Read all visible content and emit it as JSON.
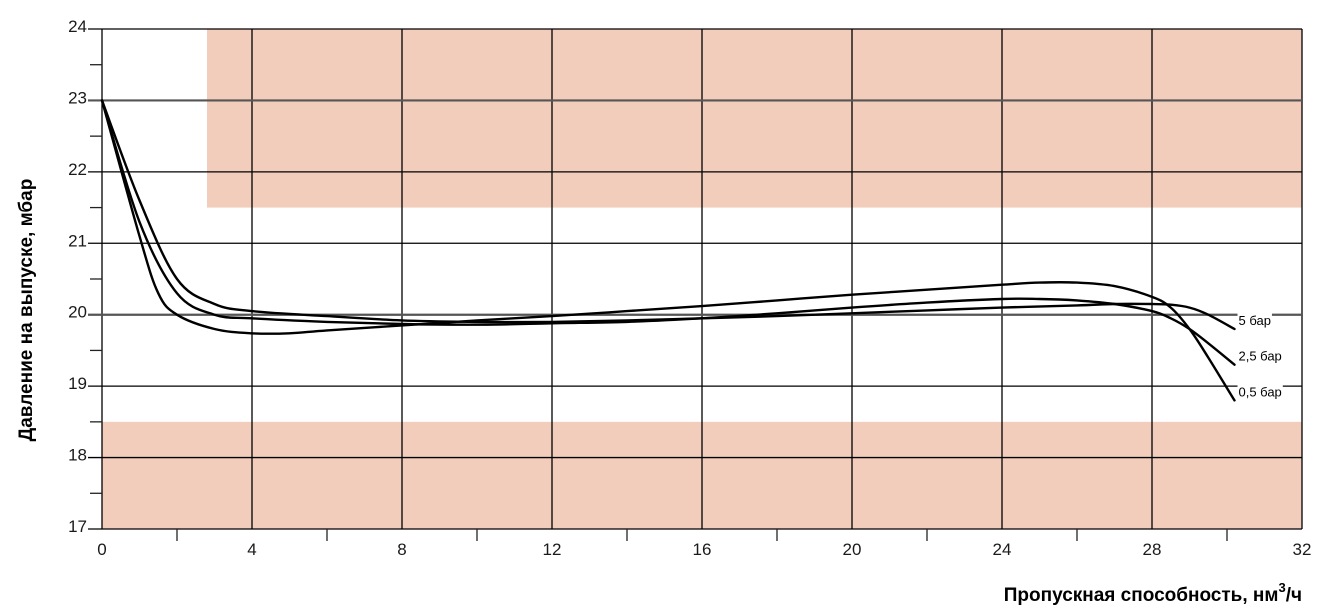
{
  "chart_data": {
    "type": "line",
    "xlabel": "Пропускная способность, нм",
    "xlabel_sup": "3",
    "xlabel_suffix": "/ч",
    "ylabel": "Давление на выпуске, мбар",
    "xlim": [
      0,
      32
    ],
    "ylim": [
      17,
      24
    ],
    "x_ticks": [
      0,
      4,
      8,
      12,
      16,
      20,
      24,
      28,
      32
    ],
    "y_ticks": [
      17,
      18,
      19,
      20,
      21,
      22,
      23,
      24
    ],
    "grid": true,
    "shaded_regions": [
      {
        "x": [
          2.8,
          32
        ],
        "y": [
          21.5,
          24
        ]
      },
      {
        "x": [
          0,
          32
        ],
        "y": [
          17,
          18.5
        ]
      }
    ],
    "colors": {
      "band": "#f2cdbc",
      "grid": "#000000",
      "grid_ref": "#555555",
      "line": "#000000"
    },
    "series": [
      {
        "name": "5 бар",
        "x": [
          0,
          1,
          2,
          3,
          4,
          6,
          8,
          10,
          12,
          14,
          16,
          18,
          20,
          22,
          24,
          26,
          27,
          28,
          28.5,
          29,
          29.5,
          30.2
        ],
        "y": [
          23.0,
          21.6,
          20.5,
          20.15,
          20.05,
          19.98,
          19.92,
          19.9,
          19.9,
          19.92,
          19.95,
          19.98,
          20.02,
          20.06,
          20.1,
          20.13,
          20.15,
          20.15,
          20.14,
          20.1,
          20.0,
          19.8
        ]
      },
      {
        "name": "2,5 бар",
        "x": [
          0,
          1,
          2,
          3,
          4,
          6,
          8,
          10,
          12,
          14,
          16,
          18,
          20,
          22,
          24,
          25,
          26,
          27,
          28,
          28.5,
          29,
          29.5,
          30.2
        ],
        "y": [
          23.0,
          21.3,
          20.3,
          20.0,
          19.95,
          19.9,
          19.87,
          19.86,
          19.88,
          19.9,
          19.95,
          20.02,
          20.1,
          20.17,
          20.22,
          20.22,
          20.2,
          20.15,
          20.05,
          19.95,
          19.8,
          19.6,
          19.3
        ]
      },
      {
        "name": "0,5 бар",
        "x": [
          0,
          1,
          1.5,
          2,
          3,
          4,
          5,
          6,
          8,
          10,
          12,
          14,
          16,
          18,
          20,
          22,
          24,
          25,
          26,
          27,
          28,
          28.5,
          29,
          29.5,
          30.2
        ],
        "y": [
          23.0,
          21.1,
          20.3,
          20.0,
          19.8,
          19.74,
          19.74,
          19.78,
          19.85,
          19.92,
          19.98,
          20.05,
          20.12,
          20.2,
          20.28,
          20.35,
          20.42,
          20.45,
          20.45,
          20.4,
          20.25,
          20.1,
          19.8,
          19.4,
          18.8
        ]
      }
    ]
  }
}
